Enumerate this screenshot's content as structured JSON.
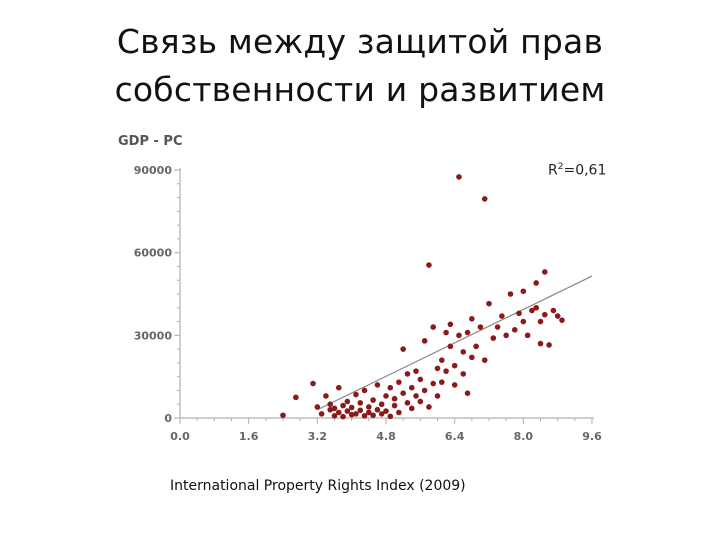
{
  "slide": {
    "title_line1": "Связь между защитой прав",
    "title_line2": "собственности и развитием",
    "caption": "International Property Rights Index (2009)",
    "r2_label": "R",
    "r2_sup": "2",
    "r2_value": "=0,61"
  },
  "chart_data": {
    "type": "scatter",
    "title": "",
    "xlabel": "",
    "ylabel": "GDP - PC",
    "xlim": [
      0,
      9.6
    ],
    "ylim": [
      0,
      90000
    ],
    "x_ticks": [
      "0.0",
      "1.6",
      "3.2",
      "4.8",
      "6.4",
      "8.0",
      "9.6"
    ],
    "y_ticks": [
      "0",
      "30000",
      "60000",
      "90000"
    ],
    "x_tick_values": [
      0,
      1.6,
      3.2,
      4.8,
      6.4,
      8.0,
      9.6
    ],
    "y_tick_values": [
      0,
      30000,
      60000,
      90000
    ],
    "grid": false,
    "marker_color": "#8b1a1a",
    "trendline": {
      "x": [
        3.2,
        9.6
      ],
      "y": [
        3000,
        51500
      ],
      "color": "#888888"
    },
    "points": [
      {
        "x": 2.4,
        "y": 1000
      },
      {
        "x": 2.7,
        "y": 7500
      },
      {
        "x": 3.1,
        "y": 12500
      },
      {
        "x": 3.2,
        "y": 4000
      },
      {
        "x": 3.3,
        "y": 1500
      },
      {
        "x": 3.4,
        "y": 8000
      },
      {
        "x": 3.5,
        "y": 3000
      },
      {
        "x": 3.5,
        "y": 5000
      },
      {
        "x": 3.6,
        "y": 800
      },
      {
        "x": 3.6,
        "y": 3500
      },
      {
        "x": 3.7,
        "y": 2000
      },
      {
        "x": 3.7,
        "y": 11000
      },
      {
        "x": 3.8,
        "y": 4500
      },
      {
        "x": 3.8,
        "y": 500
      },
      {
        "x": 3.9,
        "y": 6000
      },
      {
        "x": 3.9,
        "y": 2500
      },
      {
        "x": 4.0,
        "y": 1200
      },
      {
        "x": 4.0,
        "y": 3800
      },
      {
        "x": 4.1,
        "y": 8500
      },
      {
        "x": 4.1,
        "y": 1500
      },
      {
        "x": 4.2,
        "y": 5500
      },
      {
        "x": 4.2,
        "y": 2800
      },
      {
        "x": 4.3,
        "y": 800
      },
      {
        "x": 4.3,
        "y": 10000
      },
      {
        "x": 4.4,
        "y": 4000
      },
      {
        "x": 4.4,
        "y": 2000
      },
      {
        "x": 4.5,
        "y": 6500
      },
      {
        "x": 4.5,
        "y": 1000
      },
      {
        "x": 4.6,
        "y": 12000
      },
      {
        "x": 4.6,
        "y": 3000
      },
      {
        "x": 4.7,
        "y": 5000
      },
      {
        "x": 4.7,
        "y": 1500
      },
      {
        "x": 4.8,
        "y": 8000
      },
      {
        "x": 4.8,
        "y": 2500
      },
      {
        "x": 4.9,
        "y": 11000
      },
      {
        "x": 4.9,
        "y": 600
      },
      {
        "x": 5.0,
        "y": 4500
      },
      {
        "x": 5.0,
        "y": 7000
      },
      {
        "x": 5.1,
        "y": 2000
      },
      {
        "x": 5.1,
        "y": 13000
      },
      {
        "x": 5.2,
        "y": 25000
      },
      {
        "x": 5.2,
        "y": 9000
      },
      {
        "x": 5.3,
        "y": 5500
      },
      {
        "x": 5.3,
        "y": 16000
      },
      {
        "x": 5.4,
        "y": 3500
      },
      {
        "x": 5.4,
        "y": 11000
      },
      {
        "x": 5.5,
        "y": 17000
      },
      {
        "x": 5.5,
        "y": 8000
      },
      {
        "x": 5.6,
        "y": 6000
      },
      {
        "x": 5.6,
        "y": 14000
      },
      {
        "x": 5.7,
        "y": 28000
      },
      {
        "x": 5.7,
        "y": 10000
      },
      {
        "x": 5.8,
        "y": 55500
      },
      {
        "x": 5.8,
        "y": 4000
      },
      {
        "x": 5.9,
        "y": 12500
      },
      {
        "x": 5.9,
        "y": 33000
      },
      {
        "x": 6.0,
        "y": 18000
      },
      {
        "x": 6.0,
        "y": 8000
      },
      {
        "x": 6.1,
        "y": 21000
      },
      {
        "x": 6.1,
        "y": 13000
      },
      {
        "x": 6.2,
        "y": 31000
      },
      {
        "x": 6.2,
        "y": 17000
      },
      {
        "x": 6.3,
        "y": 26000
      },
      {
        "x": 6.3,
        "y": 34000
      },
      {
        "x": 6.4,
        "y": 19000
      },
      {
        "x": 6.4,
        "y": 12000
      },
      {
        "x": 6.5,
        "y": 30000
      },
      {
        "x": 6.5,
        "y": 87500
      },
      {
        "x": 6.6,
        "y": 24000
      },
      {
        "x": 6.6,
        "y": 16000
      },
      {
        "x": 6.7,
        "y": 9000
      },
      {
        "x": 6.7,
        "y": 31000
      },
      {
        "x": 6.8,
        "y": 36000
      },
      {
        "x": 6.8,
        "y": 22000
      },
      {
        "x": 6.9,
        "y": 26000
      },
      {
        "x": 7.0,
        "y": 33000
      },
      {
        "x": 7.1,
        "y": 21000
      },
      {
        "x": 7.1,
        "y": 79500
      },
      {
        "x": 7.2,
        "y": 41500
      },
      {
        "x": 7.3,
        "y": 29000
      },
      {
        "x": 7.4,
        "y": 33000
      },
      {
        "x": 7.5,
        "y": 37000
      },
      {
        "x": 7.6,
        "y": 30000
      },
      {
        "x": 7.7,
        "y": 45000
      },
      {
        "x": 7.8,
        "y": 32000
      },
      {
        "x": 7.9,
        "y": 38000
      },
      {
        "x": 8.0,
        "y": 46000
      },
      {
        "x": 8.0,
        "y": 35000
      },
      {
        "x": 8.1,
        "y": 30000
      },
      {
        "x": 8.2,
        "y": 39000
      },
      {
        "x": 8.3,
        "y": 49000
      },
      {
        "x": 8.3,
        "y": 40000
      },
      {
        "x": 8.4,
        "y": 35000
      },
      {
        "x": 8.4,
        "y": 27000
      },
      {
        "x": 8.5,
        "y": 53000
      },
      {
        "x": 8.5,
        "y": 37500
      },
      {
        "x": 8.6,
        "y": 26500
      },
      {
        "x": 8.7,
        "y": 39000
      },
      {
        "x": 8.8,
        "y": 37000
      },
      {
        "x": 8.9,
        "y": 35500
      }
    ]
  }
}
